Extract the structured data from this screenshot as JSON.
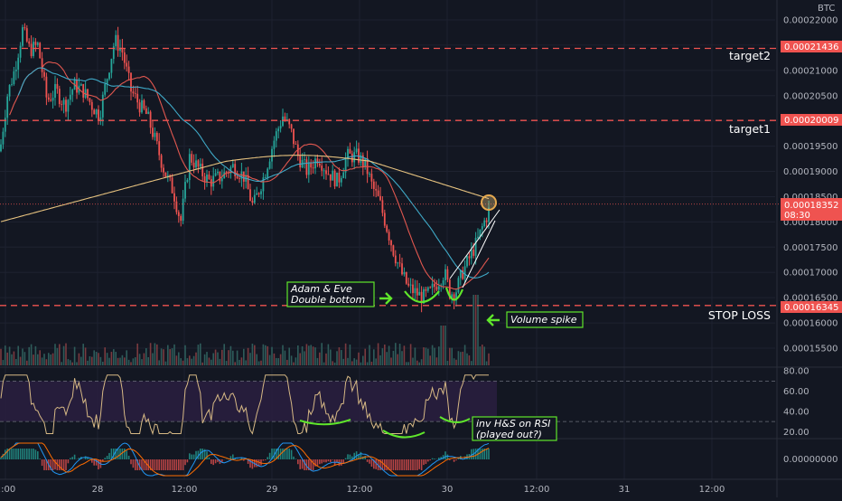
{
  "chart_data": {
    "type": "candlestick",
    "currency": "BTC",
    "indicators": [
      "MA",
      "RSI",
      "MACD"
    ],
    "price_range": [
      0.000152,
      0.000222
    ],
    "y_ticks": [
      "0.00022000",
      "0.00021500",
      "0.00021000",
      "0.00020500",
      "0.00020000",
      "0.00019500",
      "0.00019000",
      "0.00018500",
      "0.00018000",
      "0.00017500",
      "0.00017000",
      "0.00016500",
      "0.00016000",
      "0.00015500"
    ],
    "x_ticks": [
      "2:00",
      "28",
      "12:00",
      "29",
      "12:00",
      "30",
      "12:00",
      "31",
      "12:00"
    ],
    "levels": [
      {
        "name": "target2",
        "label": "target2",
        "price": 0.00021436,
        "price_label": "0.00021436",
        "color": "#ef5350"
      },
      {
        "name": "target1",
        "label": "target1",
        "price": 0.00020009,
        "price_label": "0.00020009",
        "color": "#ef5350"
      },
      {
        "name": "stop-loss",
        "label": "STOP LOSS",
        "price": 0.00016345,
        "price_label": "0.00016345",
        "color": "#ef5350"
      }
    ],
    "current": {
      "price": 0.00018352,
      "price_label": "0.00018352",
      "countdown": "08:30",
      "color": "#ef5350"
    },
    "rsi": {
      "ticks": [
        "80.00",
        "60.00",
        "40.00",
        "20.00"
      ],
      "upper": 70,
      "lower": 30,
      "range": [
        14,
        82
      ]
    },
    "macd": {
      "ticks": [
        "0.00000000"
      ]
    },
    "annotations": {
      "pattern": [
        "Adam & Eve",
        "Double bottom"
      ],
      "volume": "Volume spike",
      "rsi": [
        "inv H&S on RSI",
        "(played out?)"
      ]
    },
    "colors": {
      "up": "#26a69a",
      "down": "#ef5350",
      "ma_red": "#e0574f",
      "ma_blue": "#3fa9c7",
      "ma_tan": "#e6c27f",
      "rsi": "#d7b985",
      "annotation": "#5fe62b",
      "bg": "#131722"
    }
  }
}
